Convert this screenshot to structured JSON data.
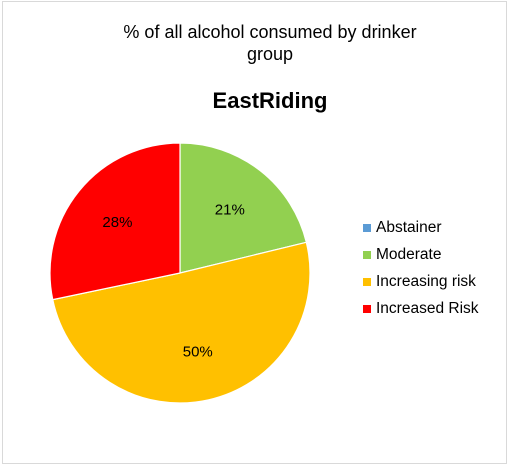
{
  "chart_data": {
    "type": "pie",
    "title_lines": [
      "% of all alcohol consumed  by drinker",
      "group"
    ],
    "subtitle": "EastRiding",
    "categories": [
      "Abstainer",
      "Moderate",
      "Increasing risk",
      "Increased Risk"
    ],
    "values": [
      0,
      21,
      50,
      28
    ],
    "data_labels": [
      "",
      "21%",
      "50%",
      "28%"
    ],
    "colors": [
      "#5b9bd5",
      "#92d050",
      "#ffc000",
      "#ff0000"
    ],
    "start_angle_deg": 0,
    "direction": "clockwise",
    "legend_position": "right"
  }
}
